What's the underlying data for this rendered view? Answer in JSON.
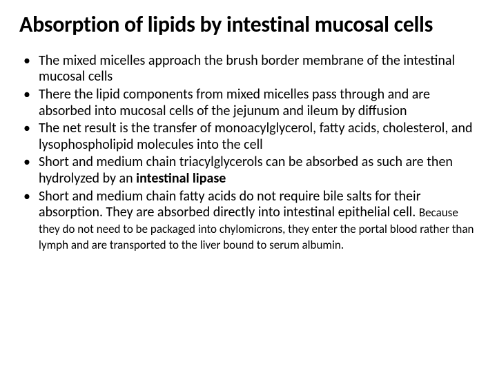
{
  "slide": {
    "title": "Absorption of lipids by intestinal mucosal cells",
    "bullets": [
      {
        "text": "The mixed micelles approach the brush border membrane of the intestinal mucosal cells"
      },
      {
        "text": "There the lipid components from mixed micelles pass through and are absorbed into mucosal cells of the jejunum and ileum by diffusion"
      },
      {
        "text": "The net result is the transfer of monoacylglycerol, fatty acids, cholesterol, and lysophospholipid molecules into the cell"
      },
      {
        "pre": "Short and medium chain triacylglycerols can be absorbed as such are then hydrolyzed by an ",
        "bold": "intestinal lipase",
        "post": ""
      },
      {
        "pre": "Short and medium chain fatty acids do not require bile salts for their absorption. They are absorbed directly into intestinal epithelial cell. ",
        "small": "Because they do not need to be packaged into chylomicrons, they enter the portal blood rather than lymph and are transported to the liver bound to serum albumin."
      }
    ]
  },
  "style": {
    "background_color": "#ffffff",
    "text_color": "#000000",
    "title_fontsize": 32,
    "title_fontweight": 700,
    "bullet_fontsize": 20,
    "small_fontsize": 17,
    "font_family": "Calibri, Arial, sans-serif"
  }
}
